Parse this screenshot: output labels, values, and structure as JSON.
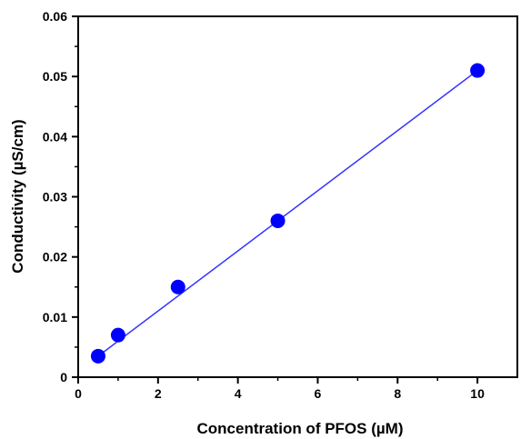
{
  "chart_data": {
    "type": "scatter",
    "title": "",
    "xlabel": "Concentration of PFOS (µM)",
    "ylabel": "Conductivity (µS/cm)",
    "xlim": [
      0,
      11
    ],
    "ylim": [
      0,
      0.06
    ],
    "x_ticks": [
      0,
      2,
      4,
      6,
      8,
      10
    ],
    "x_tick_labels": [
      "0",
      "2",
      "4",
      "6",
      "8",
      "10"
    ],
    "y_ticks": [
      0,
      0.01,
      0.02,
      0.03,
      0.04,
      0.05,
      0.06
    ],
    "y_tick_labels": [
      "0",
      "0.01",
      "0.02",
      "0.03",
      "0.04",
      "0.05",
      "0.06"
    ],
    "grid": false,
    "legend": "none",
    "series": [
      {
        "x": [
          0.5,
          1,
          2.5,
          5,
          10
        ],
        "y": [
          0.0035,
          0.007,
          0.015,
          0.026,
          0.051
        ],
        "marker_color": "#0000ff"
      }
    ],
    "fit_line": {
      "x": [
        0.5,
        10
      ],
      "y": [
        0.0035,
        0.051
      ],
      "color": "#3333ff"
    }
  }
}
